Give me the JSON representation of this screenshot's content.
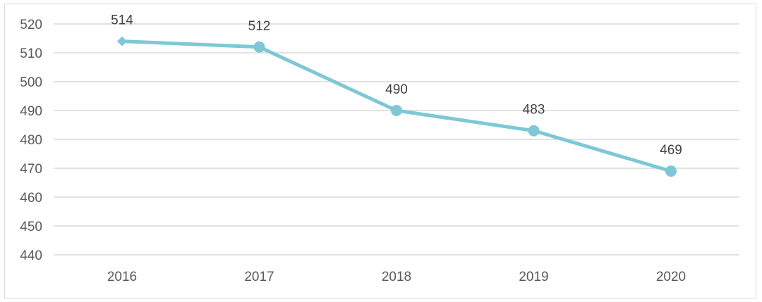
{
  "chart_data": {
    "type": "line",
    "title": "",
    "xlabel": "",
    "ylabel": "",
    "categories": [
      "2016",
      "2017",
      "2018",
      "2019",
      "2020"
    ],
    "series": [
      {
        "values": [
          514,
          512,
          490,
          483,
          469
        ],
        "color": "#7ec8d5"
      }
    ],
    "data_labels": [
      "514",
      "512",
      "490",
      "483",
      "469"
    ],
    "y_ticks": [
      "440",
      "450",
      "460",
      "470",
      "480",
      "490",
      "500",
      "510",
      "520"
    ],
    "ylim": [
      440,
      520
    ],
    "grid": true,
    "legend": "none",
    "first_marker": "diamond",
    "other_markers": "circle"
  }
}
